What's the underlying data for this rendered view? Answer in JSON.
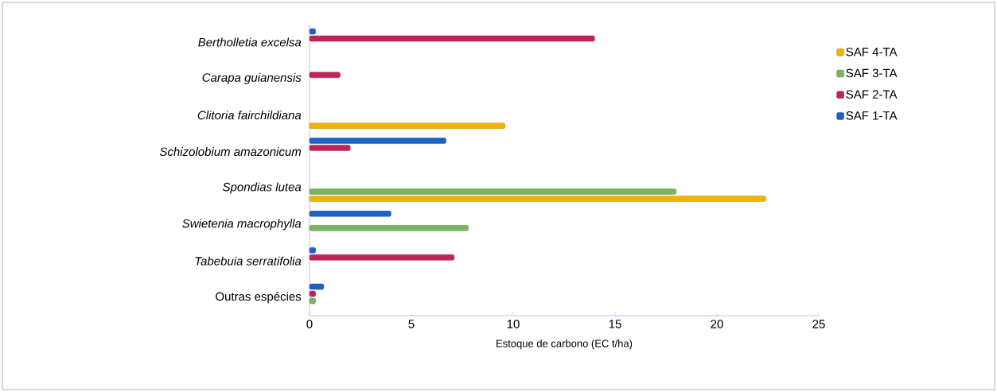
{
  "chart_data": {
    "type": "bar",
    "orientation": "horizontal",
    "xlabel": "Estoque de carbono (EC t/ha)",
    "categories": [
      "*Bertholletia excelsa*",
      "*Carapa guianensis*",
      "*Clitoria fairchildiana*",
      "*Schizolobium amazonicum*",
      "*Spondias lutea*",
      "*Swietenia macrophylla*",
      "*Tabebuia serratifolia*",
      "Outras espécies"
    ],
    "series": [
      {
        "name": "SAF 4-TA",
        "color": "#f0b400",
        "values": [
          null,
          null,
          9.6,
          null,
          22.4,
          null,
          null,
          null
        ]
      },
      {
        "name": "SAF 3-TA",
        "color": "#7ab55c",
        "values": [
          null,
          null,
          null,
          null,
          18.0,
          7.8,
          null,
          0.3
        ]
      },
      {
        "name": "SAF 2-TA",
        "color": "#c0245a",
        "values": [
          14.0,
          1.5,
          null,
          2.0,
          null,
          null,
          7.1,
          0.3
        ]
      },
      {
        "name": "SAF 1-TA",
        "color": "#1f5fc8",
        "values": [
          0.3,
          null,
          null,
          6.7,
          null,
          4.0,
          0.3,
          0.7
        ]
      }
    ],
    "xlim": [
      0,
      25
    ],
    "xticks": [
      0,
      5,
      10,
      15,
      20,
      25
    ],
    "legend": "right",
    "grid": false
  }
}
